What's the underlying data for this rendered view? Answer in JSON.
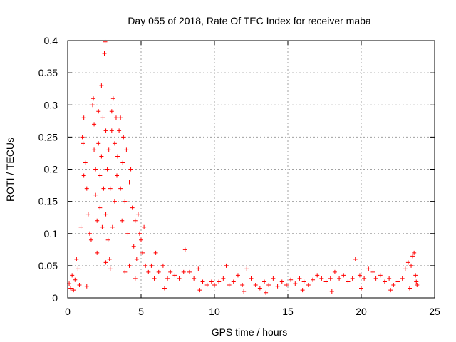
{
  "chart_data": {
    "type": "scatter",
    "title": "Day 055 of 2018, Rate Of TEC Index for receiver maba",
    "xlabel": "GPS time / hours",
    "ylabel": "ROTI / TECUs",
    "xlim": [
      0,
      25
    ],
    "ylim": [
      0,
      0.4
    ],
    "xticks": [
      0,
      5,
      10,
      15,
      20,
      25
    ],
    "xtick_labels": [
      "0",
      "5",
      "10",
      "15",
      "20",
      "25"
    ],
    "yticks": [
      0,
      0.05,
      0.1,
      0.15,
      0.2,
      0.25,
      0.3,
      0.35,
      0.4
    ],
    "ytick_labels": [
      "0",
      "0.05",
      "0.1",
      "0.15",
      "0.2",
      "0.25",
      "0.3",
      "0.35",
      "0.4"
    ],
    "grid": true,
    "marker": "+",
    "color": "#ff0000",
    "series": [
      {
        "name": "ROTI",
        "points": [
          [
            0.1,
            0.022
          ],
          [
            0.3,
            0.035
          ],
          [
            0.5,
            0.028
          ],
          [
            0.6,
            0.06
          ],
          [
            0.8,
            0.02
          ],
          [
            0.9,
            0.11
          ],
          [
            1.0,
            0.25
          ],
          [
            1.05,
            0.24
          ],
          [
            1.1,
            0.19
          ],
          [
            1.1,
            0.28
          ],
          [
            1.2,
            0.21
          ],
          [
            1.3,
            0.17
          ],
          [
            1.4,
            0.13
          ],
          [
            1.5,
            0.1
          ],
          [
            1.6,
            0.09
          ],
          [
            1.7,
            0.3
          ],
          [
            1.75,
            0.31
          ],
          [
            1.8,
            0.23
          ],
          [
            1.8,
            0.27
          ],
          [
            1.9,
            0.2
          ],
          [
            1.9,
            0.16
          ],
          [
            2.0,
            0.12
          ],
          [
            2.0,
            0.07
          ],
          [
            2.1,
            0.24
          ],
          [
            2.1,
            0.29
          ],
          [
            2.2,
            0.19
          ],
          [
            2.2,
            0.14
          ],
          [
            2.3,
            0.33
          ],
          [
            2.3,
            0.22
          ],
          [
            2.35,
            0.11
          ],
          [
            2.4,
            0.28
          ],
          [
            2.45,
            0.17
          ],
          [
            2.5,
            0.38
          ],
          [
            2.55,
            0.398
          ],
          [
            2.6,
            0.26
          ],
          [
            2.6,
            0.13
          ],
          [
            2.7,
            0.2
          ],
          [
            2.75,
            0.09
          ],
          [
            2.8,
            0.23
          ],
          [
            2.85,
            0.06
          ],
          [
            2.9,
            0.17
          ],
          [
            3.0,
            0.26
          ],
          [
            3.0,
            0.29
          ],
          [
            3.05,
            0.11
          ],
          [
            3.1,
            0.31
          ],
          [
            3.2,
            0.24
          ],
          [
            3.2,
            0.15
          ],
          [
            3.3,
            0.28
          ],
          [
            3.35,
            0.19
          ],
          [
            3.4,
            0.22
          ],
          [
            3.5,
            0.26
          ],
          [
            3.6,
            0.17
          ],
          [
            3.6,
            0.28
          ],
          [
            3.7,
            0.12
          ],
          [
            3.75,
            0.21
          ],
          [
            3.8,
            0.25
          ],
          [
            3.9,
            0.15
          ],
          [
            4.0,
            0.23
          ],
          [
            4.1,
            0.1
          ],
          [
            4.2,
            0.18
          ],
          [
            4.3,
            0.2
          ],
          [
            4.4,
            0.14
          ],
          [
            4.5,
            0.08
          ],
          [
            4.6,
            0.12
          ],
          [
            4.7,
            0.06
          ],
          [
            4.8,
            0.13
          ],
          [
            4.9,
            0.1
          ],
          [
            5.0,
            0.09
          ],
          [
            5.1,
            0.07
          ],
          [
            5.2,
            0.11
          ],
          [
            5.3,
            0.05
          ],
          [
            5.5,
            0.04
          ],
          [
            5.7,
            0.05
          ],
          [
            5.9,
            0.03
          ],
          [
            6.0,
            0.07
          ],
          [
            6.2,
            0.04
          ],
          [
            6.5,
            0.05
          ],
          [
            6.8,
            0.03
          ],
          [
            7.0,
            0.04
          ],
          [
            7.3,
            0.035
          ],
          [
            7.6,
            0.03
          ],
          [
            7.9,
            0.04
          ],
          [
            8.0,
            0.075
          ],
          [
            8.3,
            0.04
          ],
          [
            8.6,
            0.03
          ],
          [
            8.9,
            0.045
          ],
          [
            9.2,
            0.025
          ],
          [
            9.5,
            0.02
          ],
          [
            9.8,
            0.025
          ],
          [
            10.0,
            0.02
          ],
          [
            10.3,
            0.025
          ],
          [
            10.6,
            0.03
          ],
          [
            10.8,
            0.05
          ],
          [
            11.0,
            0.02
          ],
          [
            11.3,
            0.025
          ],
          [
            11.6,
            0.035
          ],
          [
            11.9,
            0.02
          ],
          [
            12.2,
            0.045
          ],
          [
            12.5,
            0.03
          ],
          [
            12.8,
            0.02
          ],
          [
            13.1,
            0.015
          ],
          [
            13.4,
            0.025
          ],
          [
            13.7,
            0.02
          ],
          [
            14.0,
            0.03
          ],
          [
            14.3,
            0.018
          ],
          [
            14.6,
            0.025
          ],
          [
            14.9,
            0.02
          ],
          [
            15.2,
            0.028
          ],
          [
            15.5,
            0.022
          ],
          [
            15.8,
            0.03
          ],
          [
            16.1,
            0.025
          ],
          [
            16.4,
            0.02
          ],
          [
            16.7,
            0.028
          ],
          [
            17.0,
            0.035
          ],
          [
            17.3,
            0.03
          ],
          [
            17.6,
            0.025
          ],
          [
            17.9,
            0.03
          ],
          [
            18.2,
            0.04
          ],
          [
            18.5,
            0.03
          ],
          [
            18.8,
            0.035
          ],
          [
            19.1,
            0.025
          ],
          [
            19.4,
            0.03
          ],
          [
            19.6,
            0.06
          ],
          [
            19.9,
            0.035
          ],
          [
            20.2,
            0.03
          ],
          [
            20.5,
            0.045
          ],
          [
            20.8,
            0.04
          ],
          [
            21.0,
            0.03
          ],
          [
            21.3,
            0.035
          ],
          [
            21.6,
            0.025
          ],
          [
            21.9,
            0.03
          ],
          [
            22.2,
            0.02
          ],
          [
            22.5,
            0.025
          ],
          [
            22.8,
            0.03
          ],
          [
            23.0,
            0.045
          ],
          [
            23.2,
            0.055
          ],
          [
            23.4,
            0.05
          ],
          [
            23.5,
            0.065
          ],
          [
            23.6,
            0.07
          ],
          [
            23.7,
            0.035
          ],
          [
            23.75,
            0.025
          ],
          [
            23.8,
            0.02
          ],
          [
            0.2,
            0.015
          ],
          [
            0.4,
            0.012
          ],
          [
            1.3,
            0.018
          ],
          [
            2.9,
            0.045
          ],
          [
            3.9,
            0.04
          ],
          [
            4.6,
            0.03
          ],
          [
            6.6,
            0.015
          ],
          [
            9.0,
            0.012
          ],
          [
            12.0,
            0.01
          ],
          [
            13.5,
            0.008
          ],
          [
            16.0,
            0.012
          ],
          [
            18.0,
            0.01
          ],
          [
            20.0,
            0.015
          ],
          [
            22.0,
            0.012
          ],
          [
            23.3,
            0.015
          ],
          [
            0.7,
            0.045
          ],
          [
            2.6,
            0.055
          ],
          [
            4.2,
            0.05
          ]
        ]
      }
    ]
  }
}
